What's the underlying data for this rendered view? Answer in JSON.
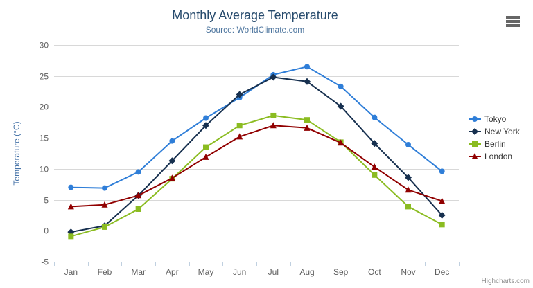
{
  "chart": {
    "title": "Monthly Average Temperature",
    "subtitle": "Source: WorldClimate.com",
    "credits": "Highcharts.com"
  },
  "chart_data": {
    "type": "line",
    "title": "Monthly Average Temperature",
    "subtitle": "Source: WorldClimate.com",
    "categories": [
      "Jan",
      "Feb",
      "Mar",
      "Apr",
      "May",
      "Jun",
      "Jul",
      "Aug",
      "Sep",
      "Oct",
      "Nov",
      "Dec"
    ],
    "series": [
      {
        "name": "Tokyo",
        "color": "#2f7ed8",
        "marker": "circle",
        "values": [
          7.0,
          6.9,
          9.5,
          14.5,
          18.2,
          21.5,
          25.2,
          26.5,
          23.3,
          18.3,
          13.9,
          9.6
        ]
      },
      {
        "name": "New York",
        "color": "#17304f",
        "marker": "diamond",
        "values": [
          -0.2,
          0.8,
          5.7,
          11.3,
          17.0,
          22.0,
          24.8,
          24.1,
          20.1,
          14.1,
          8.6,
          2.5
        ]
      },
      {
        "name": "Berlin",
        "color": "#8bbc21",
        "marker": "square",
        "values": [
          -0.9,
          0.6,
          3.5,
          8.4,
          13.5,
          17.0,
          18.6,
          17.9,
          14.3,
          9.0,
          3.9,
          1.0
        ]
      },
      {
        "name": "London",
        "color": "#910000",
        "marker": "triangle",
        "values": [
          3.9,
          4.2,
          5.7,
          8.5,
          11.9,
          15.2,
          17.0,
          16.6,
          14.2,
          10.3,
          6.6,
          4.8
        ]
      }
    ],
    "xlabel": "",
    "ylabel": "Temperature (°C)",
    "ylim": [
      -5,
      30
    ],
    "ytick_interval": 5,
    "yticks": [
      -5,
      0,
      5,
      10,
      15,
      20,
      25,
      30
    ],
    "grid": true,
    "legend_position": "right",
    "colors": {
      "gridline": "#d8d8d8",
      "axis_line": "#c0d0e0",
      "tick_label": "#606060",
      "yaxis_title": "#4572a7",
      "title": "#274b6d",
      "subtitle": "#4d759e",
      "legend_text": "#333333",
      "credits": "#909090",
      "menu_icon": "#666666"
    }
  }
}
